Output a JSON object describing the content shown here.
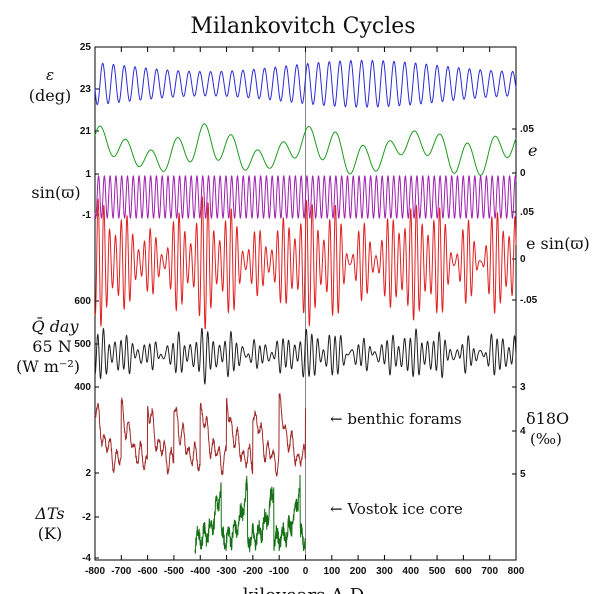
{
  "chart_data": {
    "type": "line",
    "title": "Milankovitch Cycles",
    "xlabel": "kiloyears A.D.",
    "xlim": [
      -800,
      800
    ],
    "x_ticks": [
      -800,
      -700,
      -600,
      -500,
      -400,
      -300,
      -200,
      -100,
      0,
      100,
      200,
      300,
      400,
      500,
      600,
      700,
      800
    ],
    "reference_line_x": 0,
    "grid": false,
    "panels": [
      {
        "id": "obliquity",
        "color": "#2b2bd6",
        "left_label": [
          "ε",
          "(deg)"
        ],
        "left_ticks": [
          "25",
          "23"
        ],
        "right_label": [],
        "right_ticks": [],
        "ylim": [
          22,
          25
        ],
        "period_kyr": 41,
        "amplitude_deg": [
          0.6,
          1.3
        ]
      },
      {
        "id": "eccentricity",
        "color": "#1e9a1e",
        "left_label": [],
        "left_ticks": [
          "21"
        ],
        "right_label": [
          "e"
        ],
        "right_ticks": [
          ".05",
          "0"
        ],
        "ylim": [
          0,
          0.06
        ],
        "periods_kyr": [
          100,
          400
        ]
      },
      {
        "id": "precession_angle",
        "color": "#a020b0",
        "left_label": [
          "sin(ϖ)"
        ],
        "left_ticks": [
          "1",
          "-1"
        ],
        "right_label": [],
        "right_ticks": [],
        "ylim": [
          -1,
          1
        ],
        "period_kyr": 22
      },
      {
        "id": "precession_index",
        "color": "#e02020",
        "left_label": [],
        "left_ticks": [],
        "right_label": [
          "e sin(ϖ)"
        ],
        "right_ticks": [
          ".05",
          "0",
          "-.05"
        ],
        "ylim": [
          -0.06,
          0.06
        ],
        "period_kyr": 22
      },
      {
        "id": "insolation",
        "color": "#202020",
        "left_label": [
          "Q̄ day",
          "65 N",
          "(W m⁻²)"
        ],
        "left_ticks": [
          "600",
          "500",
          "400"
        ],
        "right_label": [],
        "right_ticks": [],
        "ylim": [
          400,
          600
        ],
        "period_kyr": 22
      },
      {
        "id": "benthic_forams",
        "color": "#a02828",
        "annotation": "← benthic forams",
        "left_label": [],
        "left_ticks": [
          "2"
        ],
        "right_label": [
          "δ18O",
          "(‰)"
        ],
        "right_ticks": [
          "3",
          "4",
          "5"
        ],
        "ylim": [
          3,
          5
        ],
        "x_range": [
          -800,
          0
        ]
      },
      {
        "id": "vostok",
        "color": "#157015",
        "annotation": "← Vostok ice core",
        "left_label": [
          "ΔTs",
          "(K)"
        ],
        "left_ticks": [
          "-2",
          "-4"
        ],
        "right_label": [],
        "right_ticks": [],
        "ylim": [
          -5,
          2
        ],
        "x_range": [
          -420,
          0
        ]
      }
    ]
  }
}
